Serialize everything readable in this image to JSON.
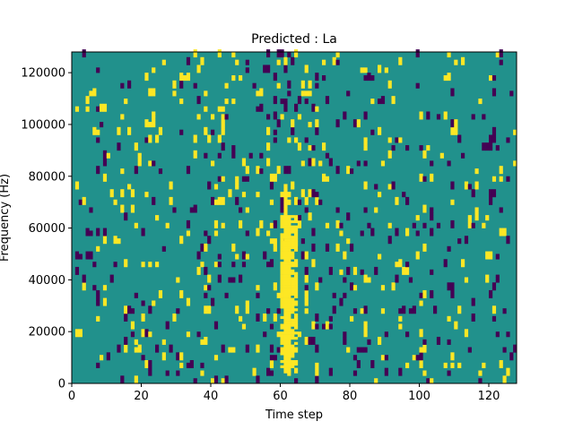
{
  "chart_data": {
    "type": "heatmap",
    "title": "Predicted : La",
    "xlabel": "Time step",
    "ylabel": "Frequency (Hz)",
    "xlim": [
      0,
      128
    ],
    "ylim": [
      0,
      128000
    ],
    "x_ticks": [
      "0",
      "20",
      "40",
      "60",
      "80",
      "100",
      "120"
    ],
    "y_ticks": [
      "0",
      "20000",
      "40000",
      "60000",
      "80000",
      "100000",
      "120000"
    ],
    "grid": false,
    "legend": "none",
    "cells": {
      "columns": 128,
      "rows": 128,
      "value_levels": [
        0,
        1,
        2
      ]
    },
    "colors": {
      "low": "#440154",
      "mid": "#21918c",
      "high": "#fde725"
    },
    "notes": "Ternary-valued map: the background is the middle level; scattered low/high cells; a dense high-valued band near time steps 60–64 from ~4000 Hz to ~74000 Hz."
  }
}
